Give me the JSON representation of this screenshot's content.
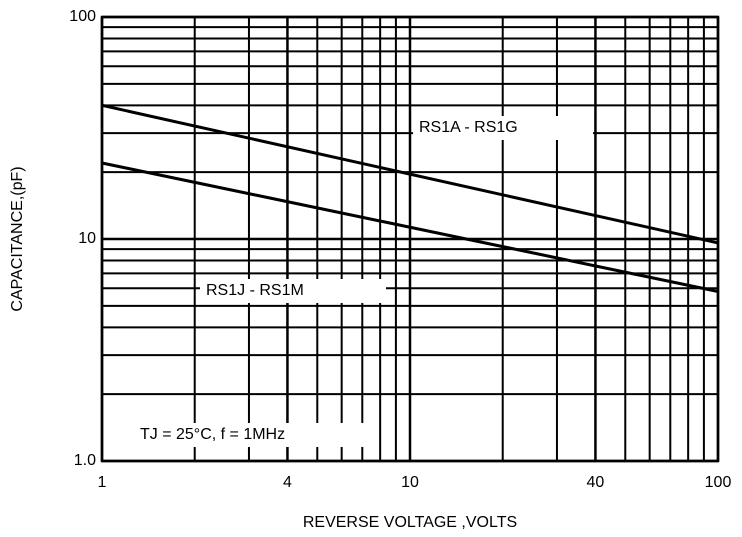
{
  "chart_data": {
    "type": "line",
    "xlabel": "REVERSE VOLTAGE ,VOLTS",
    "ylabel": "CAPACITANCE,(pF)",
    "annotation": "TJ = 25°C,  f = 1MHz",
    "x": [
      1,
      100
    ],
    "series": [
      {
        "name": "RS1A - RS1G",
        "color": "#000000",
        "values": [
          40,
          9.6
        ]
      },
      {
        "name": "RS1J - RS1M",
        "color": "#000000",
        "values": [
          22,
          5.8
        ]
      }
    ],
    "xlog": true,
    "ylog": true,
    "grid": true,
    "xlim": [
      1,
      100
    ],
    "ylim": [
      1,
      100
    ],
    "xticks": [
      1,
      4,
      10,
      40,
      100
    ],
    "yticks": [
      {
        "value": 1,
        "label": "1.0"
      },
      10,
      100
    ],
    "xgrid": [
      2,
      3,
      5,
      6,
      7,
      8,
      9,
      20,
      30,
      50,
      60,
      70,
      80,
      90
    ],
    "ygrid": [
      2,
      3,
      4,
      5,
      6,
      7,
      8,
      9,
      20,
      30,
      40,
      50,
      60,
      70,
      80,
      90
    ]
  }
}
